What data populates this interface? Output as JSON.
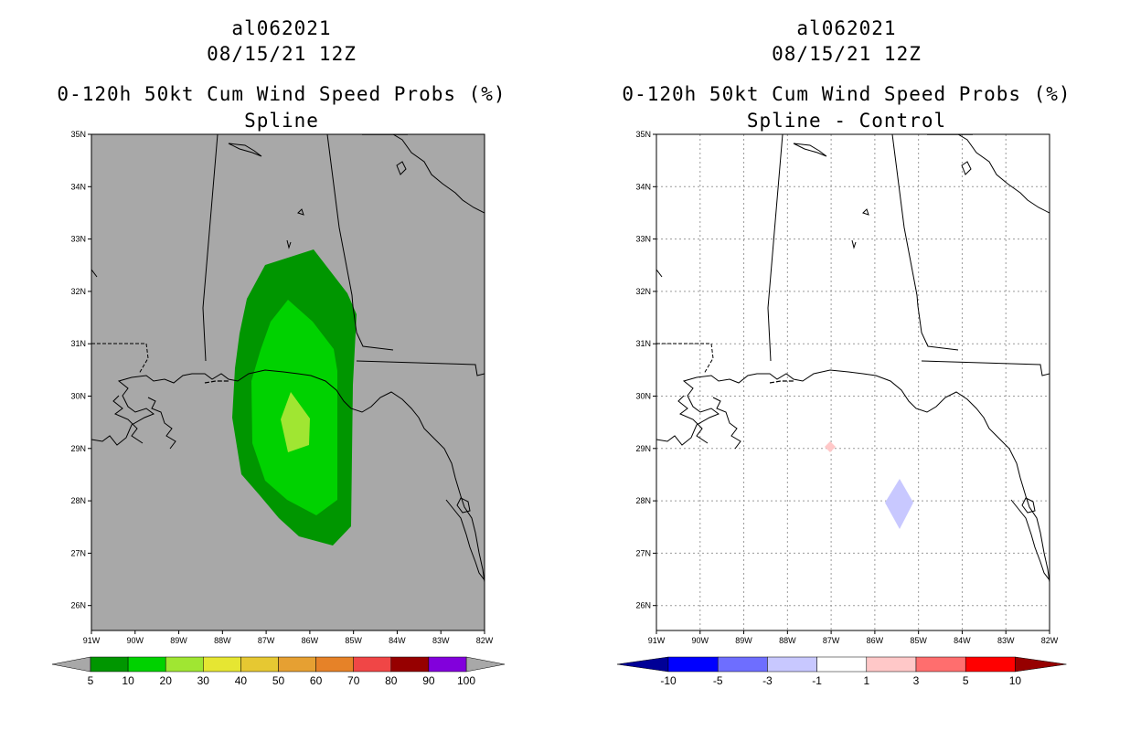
{
  "left_panel": {
    "storm_id": "al062021",
    "datetime": "08/15/21 12Z",
    "title": "0-120h 50kt Cum Wind Speed Probs (%)",
    "subtitle": "Spline",
    "background_color": "#a8a8a8",
    "colorbar": {
      "colors": [
        "#009600",
        "#00d200",
        "#a0e632",
        "#e6e632",
        "#e6c832",
        "#e6a032",
        "#e68228",
        "#f04646",
        "#960000",
        "#8200dc"
      ],
      "labels": [
        "5",
        "10",
        "20",
        "30",
        "40",
        "50",
        "60",
        "70",
        "80",
        "90",
        "100"
      ],
      "end_triangles_color": "#a8a8a8"
    }
  },
  "right_panel": {
    "storm_id": "al062021",
    "datetime": "08/15/21 12Z",
    "title": "0-120h 50kt Cum Wind Speed Probs (%)",
    "subtitle": "Spline - Control",
    "colorbar": {
      "colors": [
        "#0000ff",
        "#6e6eff",
        "#c8c8ff",
        "#ffffff",
        "#ffc8c8",
        "#ff6e6e",
        "#ff0000"
      ],
      "labels": [
        "-10",
        "-5",
        "-3",
        "-1",
        "1",
        "3",
        "5",
        "10"
      ],
      "low_triangle_color": "#000096",
      "high_triangle_color": "#960000"
    }
  },
  "axes": {
    "lon_labels": [
      "91W",
      "90W",
      "89W",
      "88W",
      "87W",
      "86W",
      "85W",
      "84W",
      "83W",
      "82W"
    ],
    "lat_labels": [
      "35N",
      "34N",
      "33N",
      "32N",
      "31N",
      "30N",
      "29N",
      "28N",
      "27N",
      "26N"
    ]
  }
}
